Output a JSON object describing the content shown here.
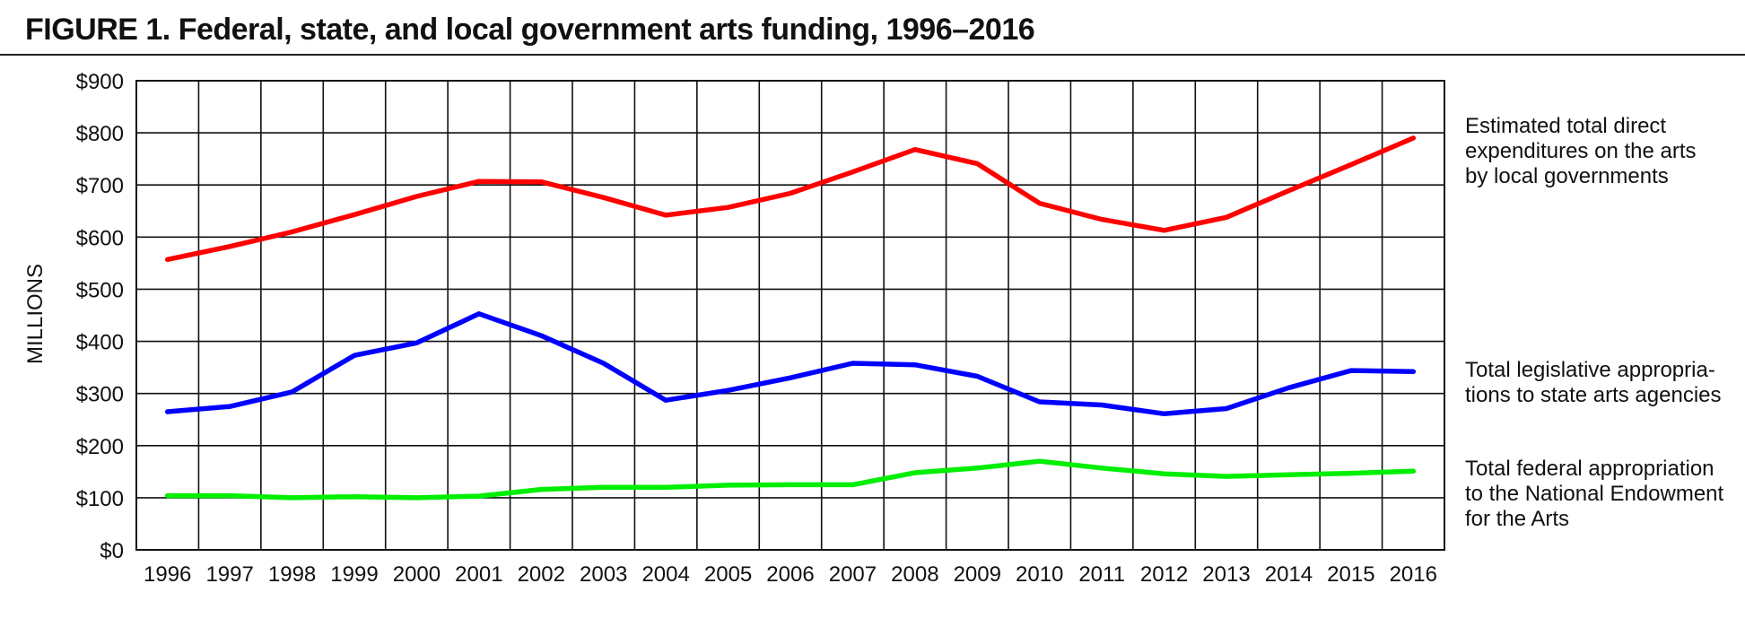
{
  "title": "FIGURE 1. Federal, state, and local government arts funding, 1996–2016",
  "chart_data": {
    "type": "line",
    "title": "FIGURE 1. Federal, state, and local government arts funding, 1996–2016",
    "xlabel": "",
    "ylabel": "MILLIONS",
    "ylim": [
      0,
      900
    ],
    "grid": true,
    "legend_placement": "right",
    "x": [
      "1996",
      "1997",
      "1998",
      "1999",
      "2000",
      "2001",
      "2002",
      "2003",
      "2004",
      "2005",
      "2006",
      "2007",
      "2008",
      "2009",
      "2010",
      "2011",
      "2012",
      "2013",
      "2014",
      "2015",
      "2016"
    ],
    "y_ticks": [
      "$0",
      "$100",
      "$200",
      "$300",
      "$400",
      "$500",
      "$600",
      "$700",
      "$800",
      "$900"
    ],
    "series": [
      {
        "label_lines": [
          "Estimated total direct",
          "expenditures on the arts",
          "by local governments"
        ],
        "color": "#ff0000",
        "values": [
          557,
          582,
          610,
          643,
          678,
          707,
          706,
          676,
          642,
          657,
          684,
          725,
          768,
          741,
          665,
          634,
          613,
          638,
          689,
          739,
          790
        ]
      },
      {
        "label_lines": [
          "Total legislative appropria-",
          "tions to state arts agencies"
        ],
        "color": "#0000ff",
        "values": [
          265,
          275,
          303,
          373,
          397,
          453,
          411,
          358,
          287,
          306,
          330,
          358,
          355,
          333,
          284,
          278,
          261,
          271,
          311,
          344,
          342
        ]
      },
      {
        "label_lines": [
          "Total federal appropriation",
          "to the National Endowment",
          "for the Arts"
        ],
        "color": "#00ee00",
        "values": [
          104,
          104,
          100,
          102,
          100,
          103,
          116,
          120,
          120,
          124,
          125,
          125,
          148,
          157,
          170,
          157,
          146,
          141,
          144,
          147,
          151
        ]
      }
    ]
  }
}
